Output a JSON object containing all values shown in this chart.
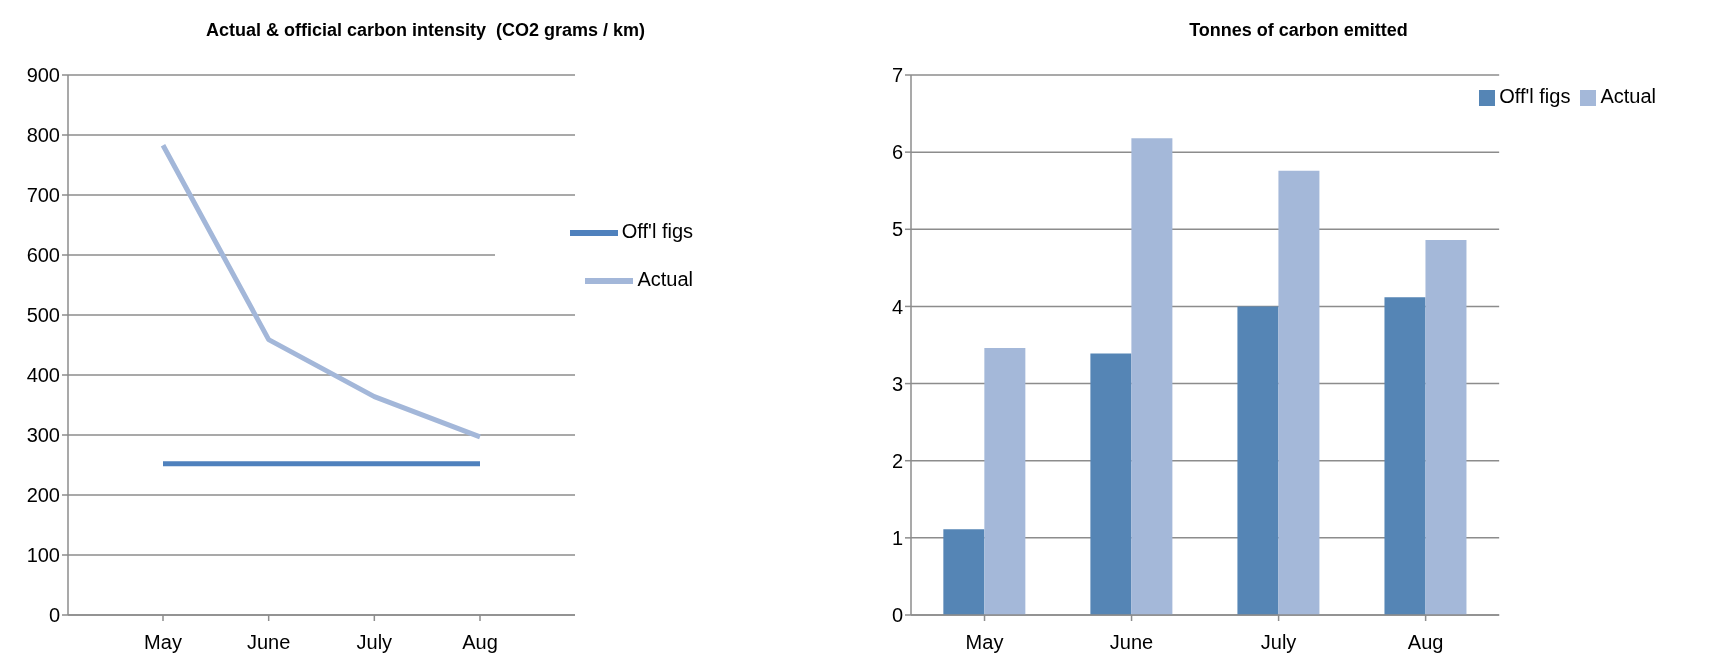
{
  "chart_data": [
    {
      "type": "line",
      "title": "Actual & official carbon intensity  (CO2 grams / km)",
      "categories": [
        "May",
        "June",
        "July",
        "Aug"
      ],
      "series": [
        {
          "name": "Off'l figs",
          "color": "#4f81bd",
          "values": [
            252,
            252,
            252,
            252
          ]
        },
        {
          "name": "Actual",
          "color": "#a3b7d9",
          "values": [
            783,
            459,
            364,
            297
          ]
        }
      ],
      "ylim": [
        0,
        900
      ],
      "yticks": [
        0,
        100,
        200,
        300,
        400,
        500,
        600,
        700,
        800,
        900
      ],
      "grid": "y",
      "legend": "top right",
      "marker": "none",
      "line_style": "solid"
    },
    {
      "type": "bar",
      "title": "Tonnes of carbon emitted",
      "categories": [
        "May",
        "June",
        "July",
        "Aug"
      ],
      "series": [
        {
          "name": "Off'l figs",
          "color": "#5585b5",
          "values": [
            1.11,
            3.39,
            4.0,
            4.12
          ]
        },
        {
          "name": "Actual",
          "color": "#a4b8d9",
          "values": [
            3.46,
            6.18,
            5.76,
            4.86
          ]
        }
      ],
      "ylim": [
        0,
        7
      ],
      "yticks": [
        0,
        1,
        2,
        3,
        4,
        5,
        6,
        7
      ],
      "grid": "y",
      "legend": "top right"
    }
  ]
}
